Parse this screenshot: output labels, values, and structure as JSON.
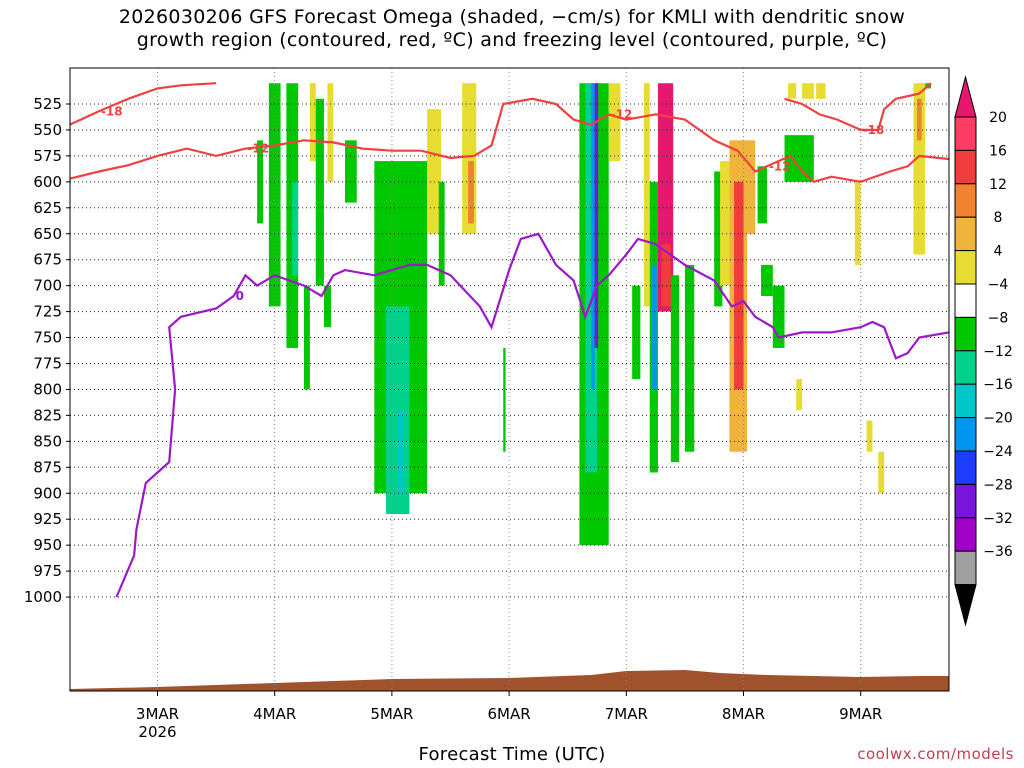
{
  "chart_data": {
    "type": "heatmap",
    "title_lines": [
      "2026030206 GFS Forecast Omega (shaded, −cm/s) for KMLI with dendritic snow",
      "growth region (contoured, red, ºC) and freezing level (contoured, purple, ºC)"
    ],
    "xlabel": "Forecast Time (UTC)",
    "credit": "coolwx.com/models",
    "x_range_days": [
      2.25,
      9.75
    ],
    "x_ticks": [
      {
        "day": 3,
        "label": "3MAR",
        "sub": "2026"
      },
      {
        "day": 4,
        "label": "4MAR",
        "sub": ""
      },
      {
        "day": 5,
        "label": "5MAR",
        "sub": ""
      },
      {
        "day": 6,
        "label": "6MAR",
        "sub": ""
      },
      {
        "day": 7,
        "label": "7MAR",
        "sub": ""
      },
      {
        "day": 8,
        "label": "8MAR",
        "sub": ""
      },
      {
        "day": 9,
        "label": "9MAR",
        "sub": ""
      }
    ],
    "y_ticks_hpa": [
      525,
      550,
      575,
      600,
      625,
      650,
      675,
      700,
      725,
      750,
      775,
      800,
      825,
      850,
      875,
      900,
      925,
      950,
      975,
      1000
    ],
    "grid": true,
    "colorbar": {
      "labels": [
        "20",
        "16",
        "12",
        "8",
        "4",
        "−4",
        "−8",
        "−12",
        "−16",
        "−20",
        "−24",
        "−28",
        "−32",
        "−36"
      ],
      "colors": [
        "#ff3c64",
        "#f03c3c",
        "#f08232",
        "#f0b43c",
        "#e6dc32",
        "#ffffff",
        "#00c800",
        "#00d28c",
        "#00c8c8",
        "#0096f0",
        "#1e3cff",
        "#7814dc",
        "#a000c8",
        "#a0a0a0"
      ],
      "top_arrow_color": "#e6186e",
      "bottom_arrow_color": "#000000"
    },
    "omega_cells": [
      {
        "t0": 3.95,
        "t1": 4.05,
        "p0": 505,
        "p1": 720,
        "color": "#00c800"
      },
      {
        "t0": 3.85,
        "t1": 3.9,
        "p0": 560,
        "p1": 640,
        "color": "#00c800"
      },
      {
        "t0": 4.1,
        "t1": 4.2,
        "p0": 505,
        "p1": 760,
        "color": "#00c800"
      },
      {
        "t0": 4.15,
        "t1": 4.2,
        "p0": 600,
        "p1": 690,
        "color": "#00d28c"
      },
      {
        "t0": 4.25,
        "t1": 4.3,
        "p0": 700,
        "p1": 800,
        "color": "#00c800"
      },
      {
        "t0": 4.3,
        "t1": 4.35,
        "p0": 505,
        "p1": 580,
        "color": "#e6dc32"
      },
      {
        "t0": 4.35,
        "t1": 4.42,
        "p0": 520,
        "p1": 700,
        "color": "#00c800"
      },
      {
        "t0": 4.45,
        "t1": 4.5,
        "p0": 505,
        "p1": 600,
        "color": "#e6dc32"
      },
      {
        "t0": 4.42,
        "t1": 4.48,
        "p0": 700,
        "p1": 740,
        "color": "#00c800"
      },
      {
        "t0": 4.6,
        "t1": 4.7,
        "p0": 560,
        "p1": 620,
        "color": "#00c800"
      },
      {
        "t0": 4.85,
        "t1": 5.3,
        "p0": 580,
        "p1": 900,
        "color": "#00c800"
      },
      {
        "t0": 4.95,
        "t1": 5.15,
        "p0": 720,
        "p1": 920,
        "color": "#00d28c"
      },
      {
        "t0": 5.05,
        "t1": 5.1,
        "p0": 820,
        "p1": 900,
        "color": "#00c8c8"
      },
      {
        "t0": 5.3,
        "t1": 5.42,
        "p0": 530,
        "p1": 650,
        "color": "#e6dc32"
      },
      {
        "t0": 5.4,
        "t1": 5.45,
        "p0": 600,
        "p1": 700,
        "color": "#00c800"
      },
      {
        "t0": 5.6,
        "t1": 5.72,
        "p0": 505,
        "p1": 650,
        "color": "#e6dc32"
      },
      {
        "t0": 5.65,
        "t1": 5.7,
        "p0": 580,
        "p1": 640,
        "color": "#f08232"
      },
      {
        "t0": 5.95,
        "t1": 5.97,
        "p0": 760,
        "p1": 860,
        "color": "#00c800"
      },
      {
        "t0": 6.6,
        "t1": 6.85,
        "p0": 505,
        "p1": 950,
        "color": "#00c800"
      },
      {
        "t0": 6.65,
        "t1": 6.75,
        "p0": 505,
        "p1": 880,
        "color": "#00d28c"
      },
      {
        "t0": 6.7,
        "t1": 6.73,
        "p0": 505,
        "p1": 800,
        "color": "#0096f0"
      },
      {
        "t0": 6.73,
        "t1": 6.76,
        "p0": 505,
        "p1": 760,
        "color": "#7814dc"
      },
      {
        "t0": 6.85,
        "t1": 6.95,
        "p0": 505,
        "p1": 580,
        "color": "#e6dc32"
      },
      {
        "t0": 7.05,
        "t1": 7.12,
        "p0": 700,
        "p1": 790,
        "color": "#00c800"
      },
      {
        "t0": 7.15,
        "t1": 7.2,
        "p0": 505,
        "p1": 720,
        "color": "#e6dc32"
      },
      {
        "t0": 7.2,
        "t1": 7.27,
        "p0": 600,
        "p1": 880,
        "color": "#00c800"
      },
      {
        "t0": 7.22,
        "t1": 7.26,
        "p0": 680,
        "p1": 800,
        "color": "#0096f0"
      },
      {
        "t0": 7.27,
        "t1": 7.4,
        "p0": 505,
        "p1": 725,
        "color": "#e6186e"
      },
      {
        "t0": 7.3,
        "t1": 7.38,
        "p0": 660,
        "p1": 720,
        "color": "#f03c3c"
      },
      {
        "t0": 7.38,
        "t1": 7.45,
        "p0": 690,
        "p1": 870,
        "color": "#00c800"
      },
      {
        "t0": 7.5,
        "t1": 7.58,
        "p0": 680,
        "p1": 860,
        "color": "#00c800"
      },
      {
        "t0": 7.75,
        "t1": 7.82,
        "p0": 590,
        "p1": 720,
        "color": "#00c800"
      },
      {
        "t0": 7.8,
        "t1": 7.88,
        "p0": 580,
        "p1": 700,
        "color": "#e6dc32"
      },
      {
        "t0": 7.88,
        "t1": 8.03,
        "p0": 560,
        "p1": 860,
        "color": "#f0b43c"
      },
      {
        "t0": 7.92,
        "t1": 8.0,
        "p0": 600,
        "p1": 800,
        "color": "#f03c3c"
      },
      {
        "t0": 8.0,
        "t1": 8.1,
        "p0": 560,
        "p1": 650,
        "color": "#f0b43c"
      },
      {
        "t0": 8.12,
        "t1": 8.2,
        "p0": 585,
        "p1": 640,
        "color": "#00c800"
      },
      {
        "t0": 8.15,
        "t1": 8.25,
        "p0": 680,
        "p1": 710,
        "color": "#00c800"
      },
      {
        "t0": 8.25,
        "t1": 8.35,
        "p0": 700,
        "p1": 760,
        "color": "#00c800"
      },
      {
        "t0": 8.35,
        "t1": 8.6,
        "p0": 555,
        "p1": 600,
        "color": "#00c800"
      },
      {
        "t0": 8.38,
        "t1": 8.45,
        "p0": 505,
        "p1": 520,
        "color": "#e6dc32"
      },
      {
        "t0": 8.5,
        "t1": 8.6,
        "p0": 505,
        "p1": 520,
        "color": "#e6dc32"
      },
      {
        "t0": 8.45,
        "t1": 8.5,
        "p0": 790,
        "p1": 820,
        "color": "#e6dc32"
      },
      {
        "t0": 8.62,
        "t1": 8.7,
        "p0": 505,
        "p1": 520,
        "color": "#e6dc32"
      },
      {
        "t0": 8.95,
        "t1": 9.0,
        "p0": 600,
        "p1": 680,
        "color": "#e6dc32"
      },
      {
        "t0": 9.05,
        "t1": 9.1,
        "p0": 830,
        "p1": 860,
        "color": "#e6dc32"
      },
      {
        "t0": 9.15,
        "t1": 9.2,
        "p0": 860,
        "p1": 900,
        "color": "#e6dc32"
      },
      {
        "t0": 9.45,
        "t1": 9.55,
        "p0": 505,
        "p1": 670,
        "color": "#e6dc32"
      },
      {
        "t0": 9.48,
        "t1": 9.52,
        "p0": 520,
        "p1": 560,
        "color": "#f08232"
      },
      {
        "t0": 9.55,
        "t1": 9.6,
        "p0": 505,
        "p1": 510,
        "color": "#00c800"
      }
    ],
    "dgz_contours": [
      {
        "label": "-18",
        "points": [
          [
            2.25,
            545
          ],
          [
            2.5,
            532
          ],
          [
            2.75,
            520
          ],
          [
            3.0,
            510
          ],
          [
            3.2,
            507
          ],
          [
            3.5,
            505
          ]
        ]
      },
      {
        "label": "-12",
        "points": [
          [
            2.25,
            597
          ],
          [
            2.5,
            590
          ],
          [
            2.75,
            584
          ],
          [
            3.0,
            575
          ],
          [
            3.25,
            568
          ],
          [
            3.5,
            575
          ],
          [
            3.75,
            568
          ],
          [
            4.0,
            565
          ],
          [
            4.25,
            560
          ],
          [
            4.5,
            562
          ],
          [
            4.75,
            568
          ],
          [
            5.0,
            570
          ],
          [
            5.25,
            570
          ],
          [
            5.5,
            577
          ],
          [
            5.7,
            575
          ],
          [
            5.85,
            565
          ],
          [
            5.95,
            525
          ],
          [
            6.2,
            520
          ],
          [
            6.4,
            525
          ],
          [
            6.55,
            540
          ],
          [
            6.7,
            545
          ],
          [
            6.85,
            535
          ],
          [
            7.0,
            540
          ],
          [
            7.25,
            535
          ],
          [
            7.5,
            540
          ],
          [
            7.75,
            560
          ],
          [
            7.95,
            570
          ],
          [
            8.1,
            590
          ],
          [
            8.2,
            585
          ],
          [
            8.4,
            575
          ],
          [
            8.5,
            590
          ],
          [
            8.6,
            600
          ],
          [
            8.75,
            595
          ],
          [
            9.0,
            600
          ],
          [
            9.25,
            590
          ],
          [
            9.4,
            585
          ],
          [
            9.5,
            575
          ],
          [
            9.75,
            578
          ]
        ]
      },
      {
        "label": "-18",
        "points": [
          [
            8.35,
            520
          ],
          [
            8.5,
            525
          ],
          [
            8.65,
            535
          ],
          [
            8.8,
            540
          ],
          [
            9.0,
            550
          ],
          [
            9.15,
            550
          ],
          [
            9.2,
            530
          ],
          [
            9.3,
            520
          ],
          [
            9.5,
            515
          ],
          [
            9.6,
            505
          ]
        ]
      }
    ],
    "freezing_contour": {
      "label": "0",
      "points": [
        [
          2.65,
          1000
        ],
        [
          2.8,
          960
        ],
        [
          2.82,
          935
        ],
        [
          2.9,
          890
        ],
        [
          3.0,
          880
        ],
        [
          3.1,
          870
        ],
        [
          3.15,
          800
        ],
        [
          3.1,
          740
        ],
        [
          3.2,
          730
        ],
        [
          3.5,
          722
        ],
        [
          3.65,
          710
        ],
        [
          3.75,
          690
        ],
        [
          3.85,
          700
        ],
        [
          4.0,
          690
        ],
        [
          4.25,
          700
        ],
        [
          4.4,
          710
        ],
        [
          4.5,
          690
        ],
        [
          4.6,
          685
        ],
        [
          4.85,
          690
        ],
        [
          5.0,
          685
        ],
        [
          5.15,
          680
        ],
        [
          5.3,
          680
        ],
        [
          5.5,
          690
        ],
        [
          5.75,
          720
        ],
        [
          5.85,
          740
        ],
        [
          6.0,
          685
        ],
        [
          6.1,
          655
        ],
        [
          6.25,
          650
        ],
        [
          6.4,
          680
        ],
        [
          6.55,
          695
        ],
        [
          6.65,
          730
        ],
        [
          6.75,
          700
        ],
        [
          6.85,
          690
        ],
        [
          7.0,
          670
        ],
        [
          7.1,
          655
        ],
        [
          7.25,
          660
        ],
        [
          7.5,
          680
        ],
        [
          7.75,
          695
        ],
        [
          7.9,
          720
        ],
        [
          8.0,
          715
        ],
        [
          8.1,
          730
        ],
        [
          8.25,
          740
        ],
        [
          8.3,
          750
        ],
        [
          8.5,
          745
        ],
        [
          8.75,
          745
        ],
        [
          9.0,
          740
        ],
        [
          9.1,
          735
        ],
        [
          9.2,
          740
        ],
        [
          9.3,
          770
        ],
        [
          9.4,
          765
        ],
        [
          9.5,
          750
        ],
        [
          9.75,
          745
        ]
      ]
    }
  }
}
